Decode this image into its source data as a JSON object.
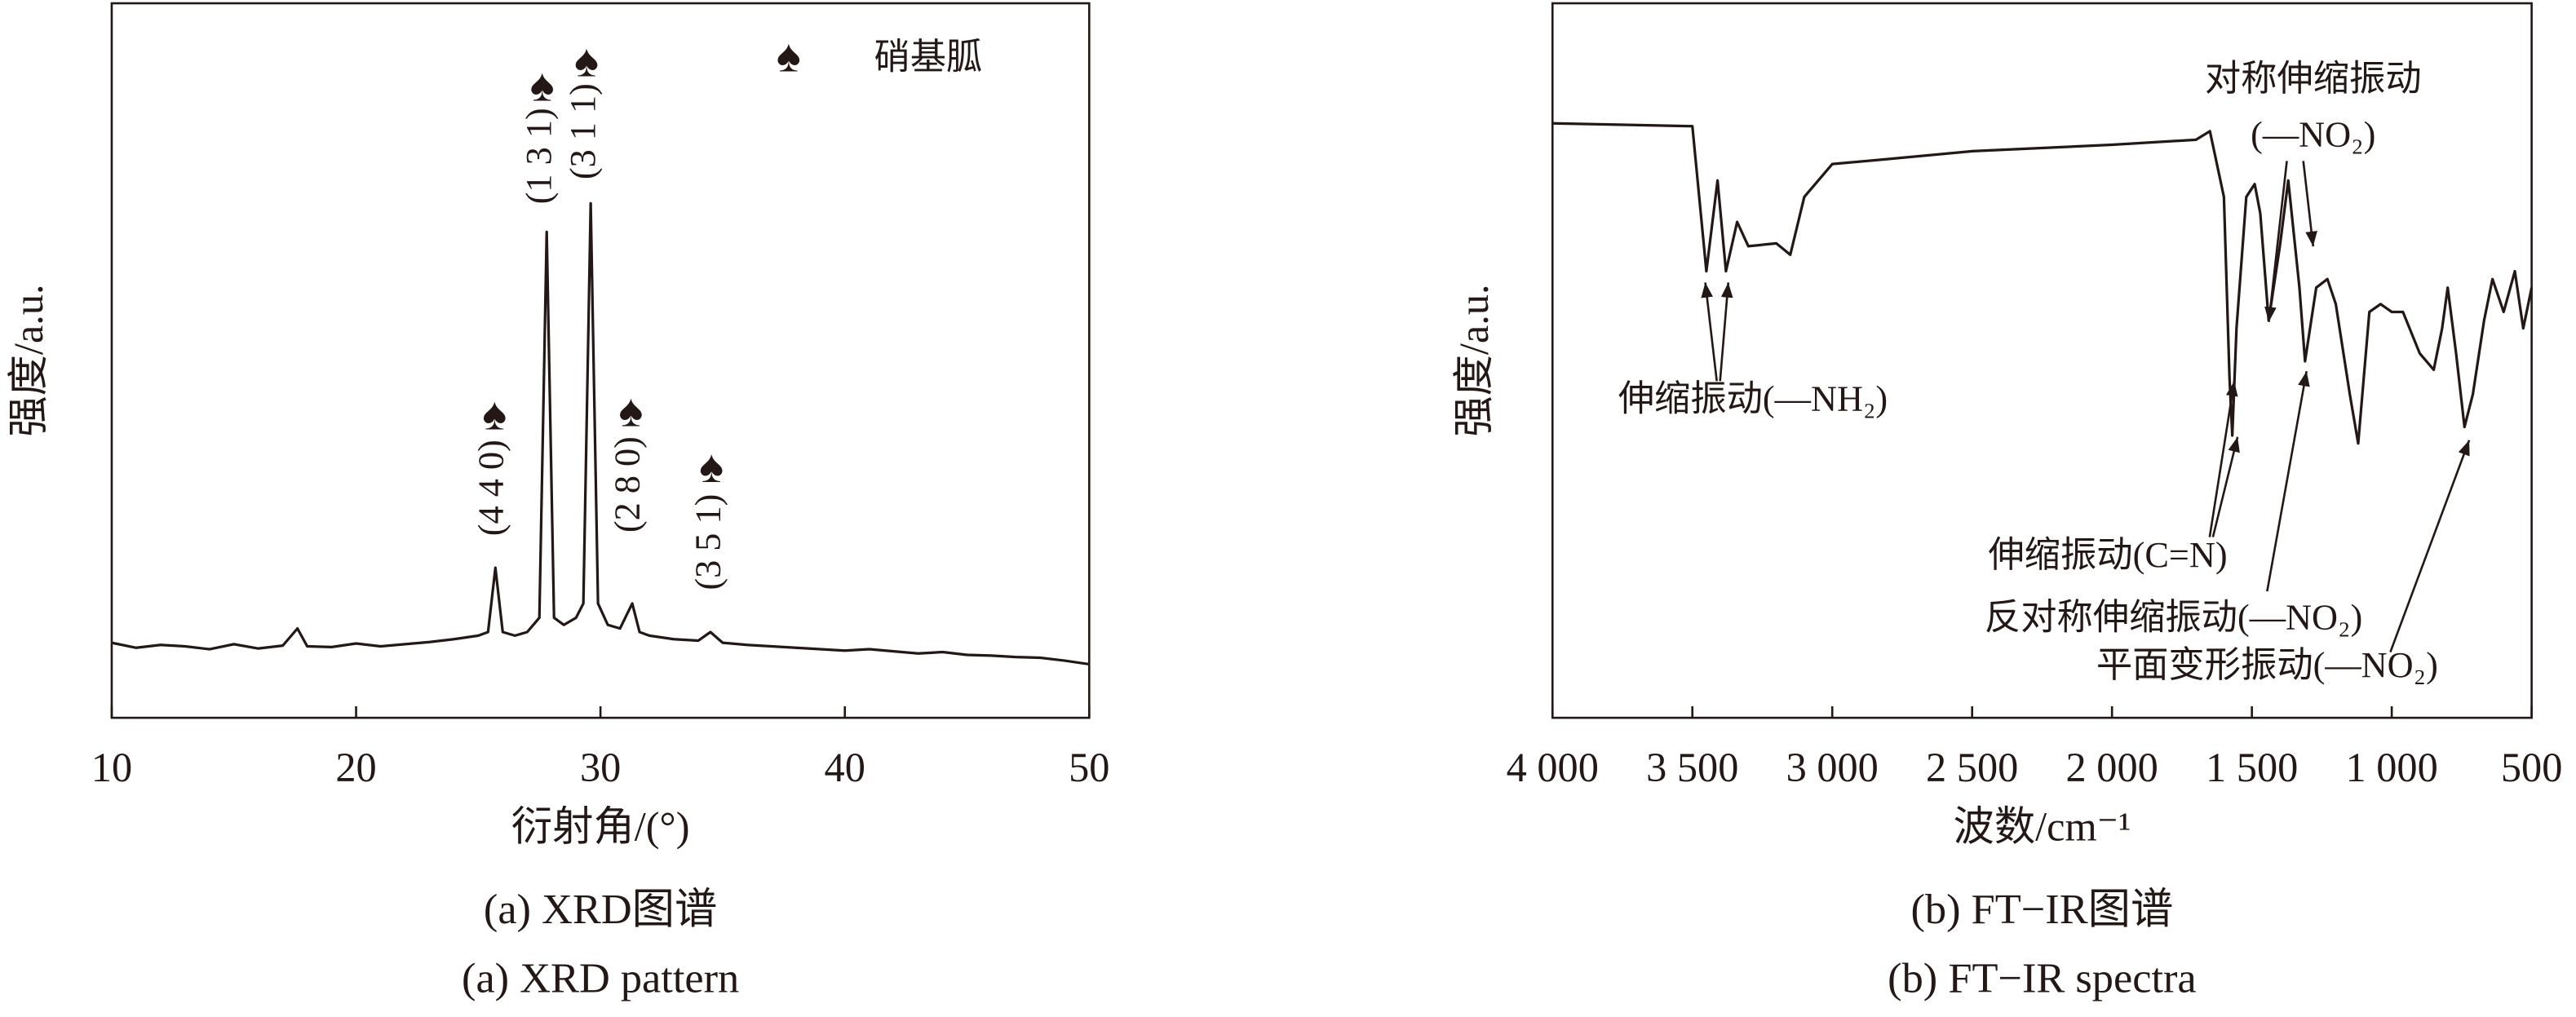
{
  "chart_data": [
    {
      "type": "line",
      "x_label": "衍射角/(°)",
      "y_label": "强度/a.u.",
      "caption_zh": "(a) XRD图谱",
      "caption_en": "(a) XRD pattern",
      "xlim": [
        10,
        50
      ],
      "xticks": [
        10,
        20,
        30,
        40,
        50
      ],
      "ylim": [
        0,
        100
      ],
      "x": [
        10,
        11,
        12,
        13,
        14,
        15,
        16,
        17,
        17.6,
        18,
        19,
        20,
        21,
        22,
        23,
        24,
        25,
        25.4,
        25.7,
        26,
        26.5,
        27,
        27.5,
        27.8,
        28.1,
        28.5,
        29,
        29.3,
        29.6,
        29.9,
        30.3,
        30.8,
        31.3,
        31.6,
        32,
        33,
        34,
        34.5,
        35,
        36,
        37,
        38,
        39,
        40,
        41,
        42,
        43,
        44,
        45,
        46,
        47,
        48,
        49,
        50
      ],
      "series": [
        {
          "color": "#231815",
          "values": [
            10.5,
            9.8,
            10.2,
            10.0,
            9.6,
            10.3,
            9.7,
            10.1,
            12.5,
            10.0,
            9.9,
            10.4,
            10.0,
            10.3,
            10.6,
            11.0,
            11.5,
            12,
            21,
            12,
            11.5,
            12,
            14,
            68,
            14,
            13,
            14,
            16,
            72,
            16,
            13,
            12.5,
            16,
            12,
            11.5,
            11,
            10.8,
            12,
            10.5,
            10.2,
            10.0,
            9.8,
            9.6,
            9.4,
            9.6,
            9.3,
            9.0,
            9.2,
            8.8,
            8.7,
            8.5,
            8.4,
            8.0,
            7.5
          ]
        }
      ],
      "annotations": [
        "(4 4 0)",
        "(1 3 1)",
        "(3 1 1)",
        "(2 8 0)",
        "(3 5 1)"
      ],
      "marker_symbol": "♠",
      "legend_label": "硝基胍"
    },
    {
      "type": "line",
      "x_label": "波数/cm⁻¹",
      "y_label": "强度/a.u.",
      "caption_zh": "(b) FT−IR图谱",
      "caption_en": "(b) FT−IR spectra",
      "xlim": [
        4000,
        500
      ],
      "xticks": [
        {
          "value": 4000,
          "label": "4 000"
        },
        {
          "value": 3500,
          "label": "3 500"
        },
        {
          "value": 3000,
          "label": "3 000"
        },
        {
          "value": 2500,
          "label": "2 500"
        },
        {
          "value": 2000,
          "label": "2 000"
        },
        {
          "value": 1500,
          "label": "1 500"
        },
        {
          "value": 1000,
          "label": "1 000"
        },
        500
      ],
      "ylim": [
        0,
        100
      ],
      "x": [
        4000,
        3500,
        3450,
        3410,
        3380,
        3340,
        3300,
        3200,
        3150,
        3100,
        3000,
        2800,
        2500,
        2000,
        1700,
        1650,
        1600,
        1580,
        1570,
        1555,
        1520,
        1490,
        1470,
        1440,
        1400,
        1370,
        1330,
        1310,
        1270,
        1230,
        1200,
        1150,
        1120,
        1080,
        1040,
        1000,
        960,
        900,
        850,
        820,
        800,
        770,
        740,
        710,
        670,
        640,
        600,
        560,
        530,
        500
      ],
      "series": [
        {
          "color": "#231815",
          "values": [
            83.2,
            82.8,
            62.5,
            75.2,
            62.5,
            69.4,
            66.0,
            66.4,
            64.8,
            72.9,
            77.5,
            78.2,
            79.3,
            80.2,
            80.9,
            82.1,
            72.9,
            47.6,
            39.5,
            54.5,
            72.9,
            74.7,
            70.6,
            55.6,
            66.0,
            75.2,
            60.2,
            49.9,
            60.2,
            61.4,
            57.9,
            45.3,
            38.4,
            56.8,
            57.9,
            56.8,
            56.8,
            51.0,
            48.7,
            54.5,
            60.2,
            51.0,
            40.7,
            45.3,
            55.6,
            61.4,
            56.8,
            62.5,
            54.5,
            60.2
          ]
        }
      ],
      "annotations": [
        "伸缩振动(—NH₂)",
        "对称伸缩振动",
        "(—NO₂)",
        "伸缩振动(C=N)",
        "反对称伸缩振动(—NO₂)",
        "平面变形振动(—NO₂)"
      ]
    }
  ]
}
